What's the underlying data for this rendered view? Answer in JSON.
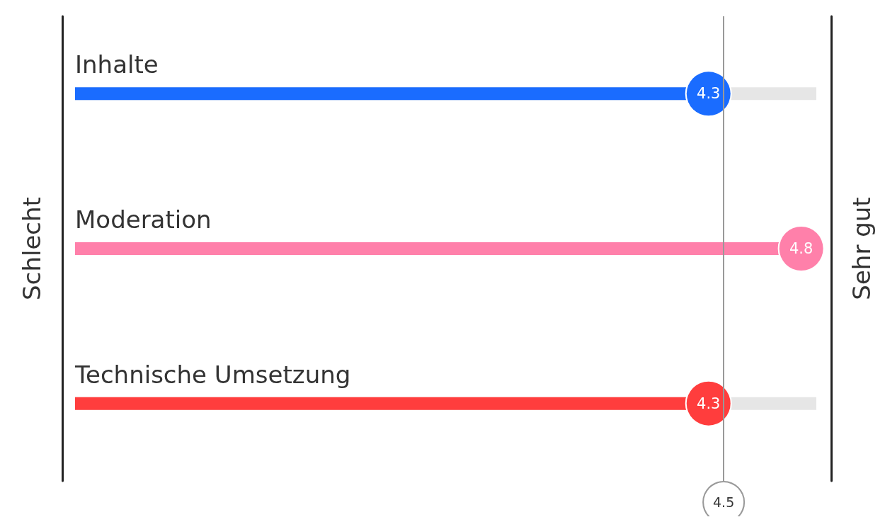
{
  "chart_data": {
    "type": "bar",
    "orientation": "horizontal",
    "ylabel": "Schlecht",
    "y2label": "Sehr gut",
    "categories": [
      "Inhalte",
      "Moderation",
      "Technische Umsetzung"
    ],
    "xlim": [
      1,
      5
    ],
    "data_labels": true,
    "tick_labels": "y",
    "colors": [
      "#1a6cff",
      "#ff80aa",
      "#ff3d3d"
    ],
    "values": [
      4.3,
      4.8,
      4.3
    ],
    "ref_lines": [
      {
        "axis": "x",
        "value": 4.5,
        "label": "4.5",
        "color": "#999999"
      }
    ]
  }
}
